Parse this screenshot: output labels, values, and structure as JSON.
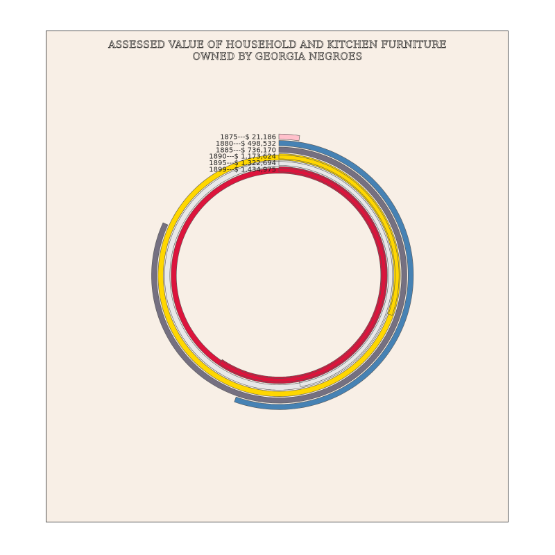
{
  "chart_data": {
    "type": "spiral",
    "title_lines": [
      "ASSESSED VALUE OF HOUSEHOLD AND KITCHEN FURNITURE",
      "OWNED BY GEORGIA NEGROES"
    ],
    "max_value": 1500000,
    "series": [
      {
        "year": "1875",
        "value": 21186,
        "label": "1875---$      21,186",
        "color": "#ffc0cb"
      },
      {
        "year": "1880",
        "value": 498532,
        "label": "1880---$    498,532",
        "color": "#4682b4"
      },
      {
        "year": "1885",
        "value": 736170,
        "label": "1885---$    736,170",
        "color": "#757081"
      },
      {
        "year": "1890",
        "value": 1173624,
        "label": "1890---$ 1,173,624",
        "color": "#ffd700"
      },
      {
        "year": "1895",
        "value": 1322694,
        "label": "1895---$ 1,322,694",
        "color": "#e8e8e8"
      },
      {
        "year": "1899",
        "value": 1434975,
        "label": "1899---$ 1,434,975",
        "color": "#dc143c"
      }
    ]
  }
}
